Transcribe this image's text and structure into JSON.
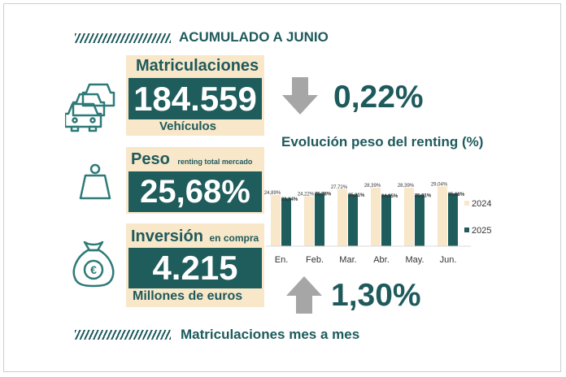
{
  "header": {
    "title": "ACUMULADO A JUNIO"
  },
  "footer": {
    "title": "Matriculaciones mes a mes"
  },
  "kpis": {
    "matriculaciones": {
      "label": "Matriculaciones",
      "value": "184.559",
      "unit": "Vehículos"
    },
    "peso": {
      "label": "Peso",
      "sublabel": "renting total mercado",
      "value": "25,68%"
    },
    "inversion": {
      "label": "Inversión",
      "sublabel": "en compra",
      "value": "4.215",
      "unit": "Millones de euros"
    }
  },
  "changes": {
    "down": {
      "value": "0,22%",
      "direction": "down"
    },
    "up": {
      "value": "1,30%",
      "direction": "up"
    }
  },
  "icons": [
    "cars-icon",
    "weight-icon",
    "money-bag-icon",
    "arrow-down-icon",
    "arrow-up-icon"
  ],
  "colors": {
    "primary": "#1f5c5c",
    "beige": "#f8e7c9",
    "arrow_gray": "#a6a6a6",
    "bar_2024": "#f8e7c9",
    "bar_2025": "#1f5c5c"
  },
  "chart_data": {
    "type": "bar",
    "title": "Evolución peso del renting (%)",
    "categories": [
      "En.",
      "Feb.",
      "Mar.",
      "Abr.",
      "May.",
      "Jun."
    ],
    "series": [
      {
        "name": "2024",
        "values": [
          24.89,
          24.22,
          27.72,
          28.39,
          28.39,
          29.04
        ],
        "labels": [
          "24,89%",
          "24,22%",
          "27,72%",
          "28,39%",
          "28,39%",
          "29,04%"
        ],
        "color": "#f8e7c9"
      },
      {
        "name": "2025",
        "values": [
          23.34,
          25.78,
          25.21,
          24.95,
          25.01,
          25.68
        ],
        "labels": [
          "23,34%",
          "25,78%",
          "25,21%",
          "24,95%",
          "25,01%",
          "25,68%"
        ],
        "color": "#1f5c5c"
      }
    ],
    "ylim": [
      0,
      30
    ],
    "legend": "right",
    "grid": false
  }
}
